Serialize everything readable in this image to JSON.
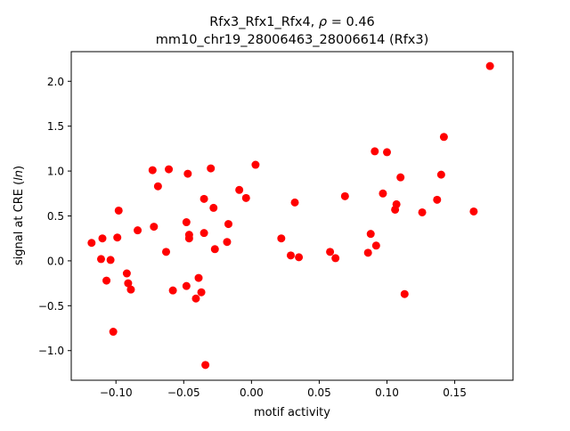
{
  "chart_data": {
    "type": "scatter",
    "title_line1_prefix": "Rfx3_Rfx1_Rfx4, ",
    "title_rho_symbol": "ρ",
    "title_rho_value": " = 0.46",
    "title_line2": "mm10_chr19_28006463_28006614 (Rfx3)",
    "xlabel": "motif activity",
    "ylabel_prefix": "signal at CRE (",
    "ylabel_italic": "ln",
    "ylabel_suffix": ")",
    "xlim": [
      -0.133,
      0.193
    ],
    "ylim": [
      -1.33,
      2.33
    ],
    "xticks": [
      -0.1,
      -0.05,
      0.0,
      0.05,
      0.1,
      0.15
    ],
    "xtick_labels": [
      "−0.10",
      "−0.05",
      "0.00",
      "0.05",
      "0.10",
      "0.15"
    ],
    "yticks": [
      -1.0,
      -0.5,
      0.0,
      0.5,
      1.0,
      1.5,
      2.0
    ],
    "ytick_labels": [
      "−1.0",
      "−0.5",
      "0.0",
      "0.5",
      "1.0",
      "1.5",
      "2.0"
    ],
    "marker_color": "#ff0000",
    "grid": false,
    "points": [
      [
        -0.118,
        0.2
      ],
      [
        -0.111,
        0.02
      ],
      [
        -0.11,
        0.25
      ],
      [
        -0.107,
        -0.22
      ],
      [
        -0.104,
        0.01
      ],
      [
        -0.102,
        -0.79
      ],
      [
        -0.099,
        0.26
      ],
      [
        -0.098,
        0.56
      ],
      [
        -0.092,
        -0.14
      ],
      [
        -0.091,
        -0.25
      ],
      [
        -0.089,
        -0.32
      ],
      [
        -0.084,
        0.34
      ],
      [
        -0.073,
        1.01
      ],
      [
        -0.072,
        0.38
      ],
      [
        -0.069,
        0.83
      ],
      [
        -0.063,
        0.1
      ],
      [
        -0.061,
        1.02
      ],
      [
        -0.058,
        -0.33
      ],
      [
        -0.048,
        -0.28
      ],
      [
        -0.048,
        0.43
      ],
      [
        -0.047,
        0.97
      ],
      [
        -0.046,
        0.25
      ],
      [
        -0.046,
        0.29
      ],
      [
        -0.041,
        -0.42
      ],
      [
        -0.039,
        -0.19
      ],
      [
        -0.037,
        -0.35
      ],
      [
        -0.035,
        0.69
      ],
      [
        -0.035,
        0.31
      ],
      [
        -0.034,
        -1.16
      ],
      [
        -0.03,
        1.03
      ],
      [
        -0.028,
        0.59
      ],
      [
        -0.027,
        0.13
      ],
      [
        -0.018,
        0.21
      ],
      [
        -0.017,
        0.41
      ],
      [
        -0.009,
        0.79
      ],
      [
        -0.004,
        0.7
      ],
      [
        0.003,
        1.07
      ],
      [
        0.022,
        0.25
      ],
      [
        0.029,
        0.06
      ],
      [
        0.032,
        0.65
      ],
      [
        0.035,
        0.04
      ],
      [
        0.058,
        0.1
      ],
      [
        0.062,
        0.03
      ],
      [
        0.069,
        0.72
      ],
      [
        0.086,
        0.09
      ],
      [
        0.088,
        0.3
      ],
      [
        0.091,
        1.22
      ],
      [
        0.092,
        0.17
      ],
      [
        0.097,
        0.75
      ],
      [
        0.1,
        1.21
      ],
      [
        0.106,
        0.57
      ],
      [
        0.107,
        0.63
      ],
      [
        0.11,
        0.93
      ],
      [
        0.113,
        -0.37
      ],
      [
        0.126,
        0.54
      ],
      [
        0.137,
        0.68
      ],
      [
        0.14,
        0.96
      ],
      [
        0.142,
        1.38
      ],
      [
        0.164,
        0.55
      ],
      [
        0.176,
        2.17
      ]
    ]
  }
}
